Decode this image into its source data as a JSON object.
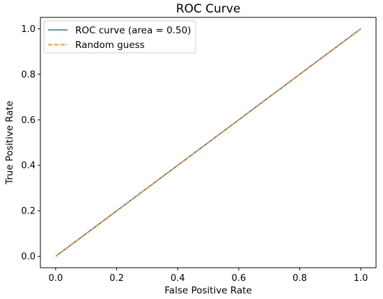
{
  "chart_data": {
    "type": "line",
    "title": "ROC Curve",
    "xlabel": "False Positive Rate",
    "ylabel": "True Positive Rate",
    "xlim": [
      -0.05,
      1.05
    ],
    "ylim": [
      -0.05,
      1.05
    ],
    "xticks": [
      0.0,
      0.2,
      0.4,
      0.6,
      0.8,
      1.0
    ],
    "yticks": [
      0.0,
      0.2,
      0.4,
      0.6,
      0.8,
      1.0
    ],
    "xtick_labels": [
      "0.0",
      "0.2",
      "0.4",
      "0.6",
      "0.8",
      "1.0"
    ],
    "ytick_labels": [
      "0.0",
      "0.2",
      "0.4",
      "0.6",
      "0.8",
      "1.0"
    ],
    "grid": false,
    "legend_position": "top-left",
    "series": [
      {
        "name": "ROC curve (area = 0.50)",
        "x": [
          0.0,
          1.0
        ],
        "y": [
          0.0,
          1.0
        ],
        "color": "#1f77b4",
        "style": "solid"
      },
      {
        "name": "Random guess",
        "x": [
          0.0,
          1.0
        ],
        "y": [
          0.0,
          1.0
        ],
        "color": "#ff7f0e",
        "style": "dashed"
      }
    ]
  }
}
